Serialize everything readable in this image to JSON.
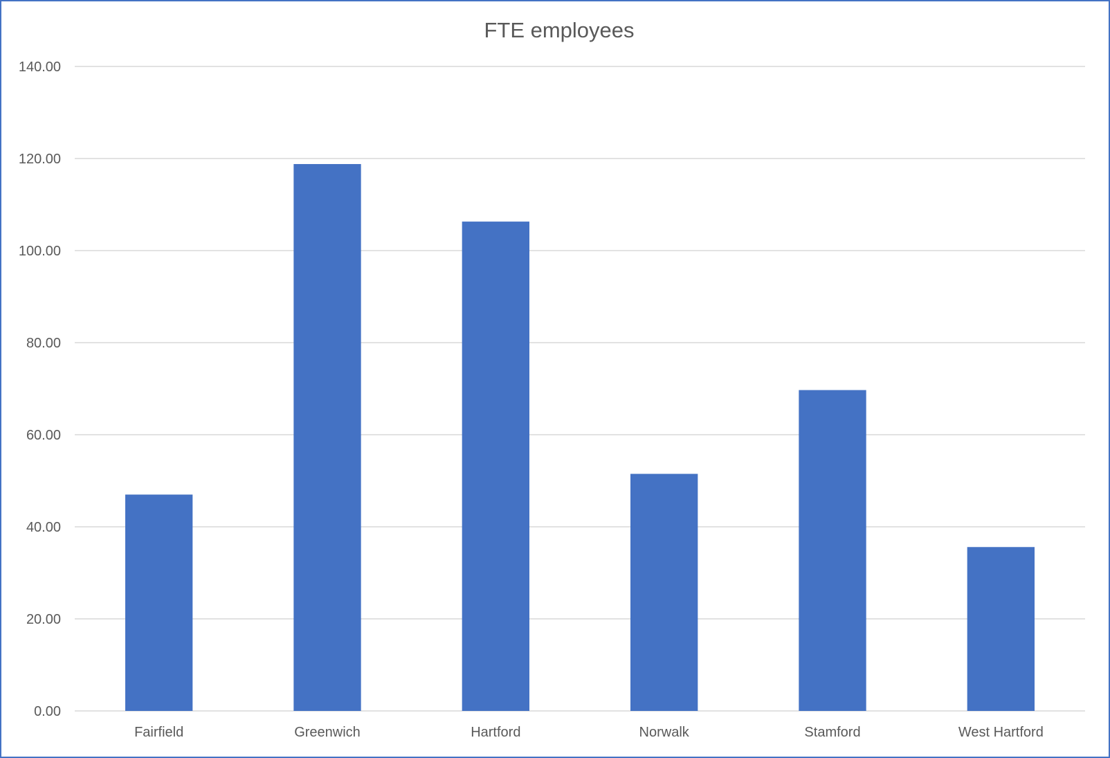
{
  "chart_data": {
    "type": "bar",
    "title": "FTE employees",
    "xlabel": "",
    "ylabel": "",
    "categories": [
      "Fairfield",
      "Greenwich",
      "Hartford",
      "Norwalk",
      "Stamford",
      "West Hartford"
    ],
    "series": [
      {
        "values": [
          47.0,
          118.8,
          106.3,
          51.5,
          69.7,
          35.6
        ]
      }
    ],
    "ylim": [
      0,
      140
    ],
    "yticks": [
      "0.00",
      "20.00",
      "40.00",
      "60.00",
      "80.00",
      "100.00",
      "120.00",
      "140.00"
    ],
    "grid": true,
    "legend": "none",
    "colors": {
      "bar": "#4472c4",
      "frame": "#4472c4",
      "grid": "#d9d9d9",
      "text": "#595959"
    }
  }
}
